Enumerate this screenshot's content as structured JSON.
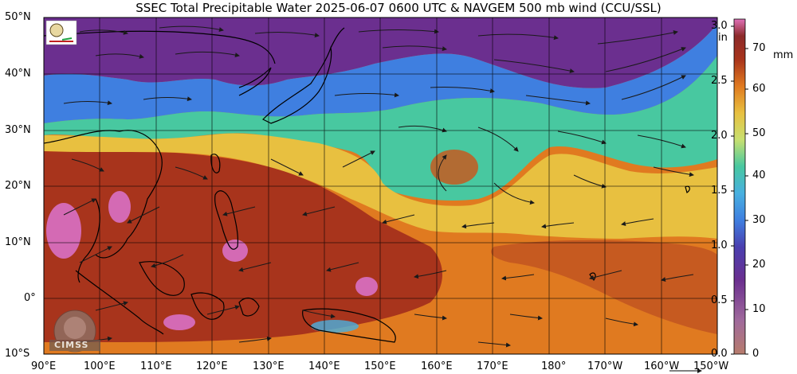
{
  "title": "SSEC Total Precipitable Water  2025-06-07 0600 UTC & NAVGEM 500 mb wind (CCU/SSL)",
  "lat_labels": [
    "50°N",
    "40°N",
    "30°N",
    "20°N",
    "10°N",
    "0°",
    "10°S"
  ],
  "lon_labels": [
    "90°E",
    "100°E",
    "110°E",
    "120°E",
    "130°E",
    "140°E",
    "150°E",
    "160°E",
    "170°E",
    "180°",
    "170°W",
    "160°W",
    "150°W"
  ],
  "colorbar": {
    "inches_unit": "in",
    "mm_unit": "mm",
    "inches_ticks": [
      "3.0",
      "2.5",
      "2.0",
      "1.5",
      "1.0",
      "0.5",
      "0.0"
    ],
    "mm_ticks": [
      "70",
      "60",
      "50",
      "40",
      "30",
      "20",
      "10",
      "0"
    ]
  },
  "logos": {
    "top_left": "SSEC logo",
    "bottom_left": "CIMSS"
  },
  "colors": {
    "very_dry": "#6b2f8f",
    "dry": "#3f7fe0",
    "moderate": "#48c8a0",
    "moist": "#e8c040",
    "wet": "#e07a20",
    "very_wet": "#a8341c",
    "extreme": "#d46ab4",
    "land_outline": "#000000",
    "grid": "#000000"
  }
}
